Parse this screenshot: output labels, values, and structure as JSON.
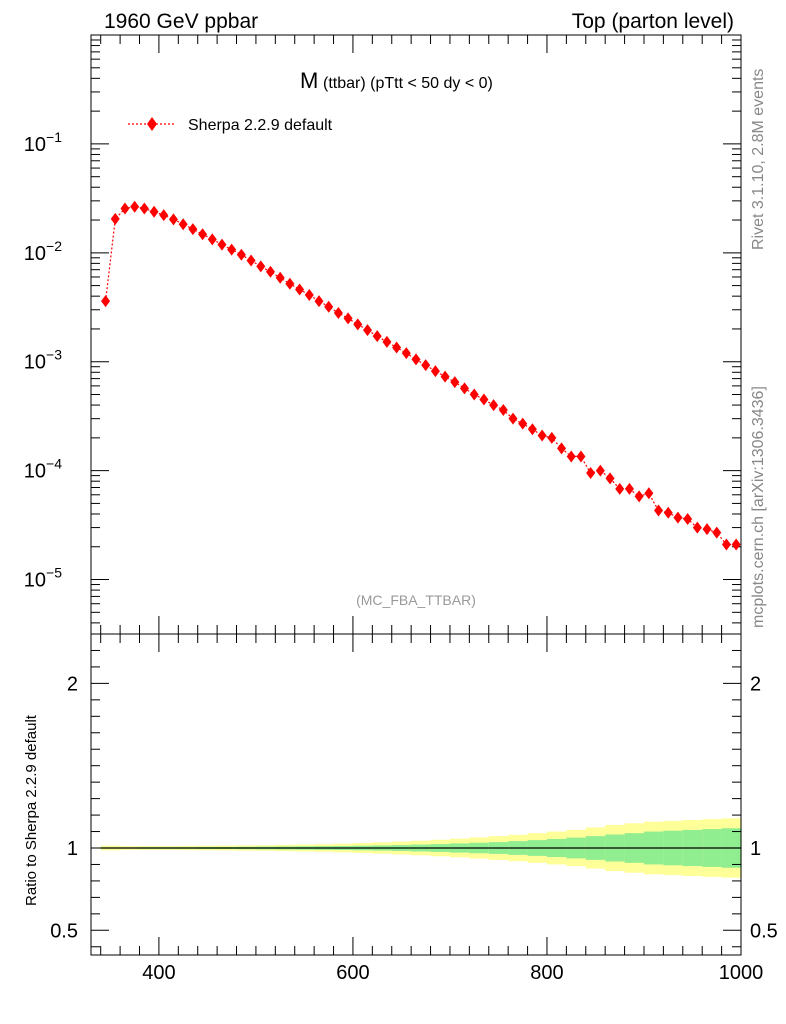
{
  "header": {
    "left": "1960 GeV ppbar",
    "right": "Top (parton level)"
  },
  "side_labels": {
    "rivet": "Rivet 3.1.10,  2.8M events",
    "mcplots": "mcplots.cern.ch [arXiv:1306.3436]"
  },
  "chart_data": {
    "type": "scatter",
    "title_main": "M",
    "title_sub": "(ttbar) (pTtt < 50 dy < 0)",
    "analysis": "(MC_FBA_TTBAR)",
    "xlim": [
      330,
      1000
    ],
    "ylim_log": [
      -5.5,
      0
    ],
    "ratio_ylim": [
      0.35,
      2.3
    ],
    "y_tick_labels": [
      {
        "base": "10",
        "exp": "−1",
        "value": 0.1
      },
      {
        "base": "10",
        "exp": "−2",
        "value": 0.01
      },
      {
        "base": "10",
        "exp": "−3",
        "value": 0.001
      },
      {
        "base": "10",
        "exp": "−4",
        "value": 0.0001
      },
      {
        "base": "10",
        "exp": "−5",
        "value": 1e-05
      }
    ],
    "x_ticks": [
      400,
      600,
      800,
      1000
    ],
    "x_tick_labels": [
      "400",
      "600",
      "800",
      "1000"
    ],
    "ratio_ticks": [
      0.5,
      1,
      2
    ],
    "ratio_tick_labels": [
      "0.5",
      "1",
      "2"
    ],
    "ratio_ylabel": "Ratio to Sherpa 2.2.9 default",
    "legend": "Sherpa 2.2.9 default",
    "series": [
      {
        "name": "Sherpa 2.2.9 default",
        "color": "#ff0000",
        "x": [
          345,
          355,
          365,
          375,
          385,
          395,
          405,
          415,
          425,
          435,
          445,
          455,
          465,
          475,
          485,
          495,
          505,
          515,
          525,
          535,
          545,
          555,
          565,
          575,
          585,
          595,
          605,
          615,
          625,
          635,
          645,
          655,
          665,
          675,
          685,
          695,
          705,
          715,
          725,
          735,
          745,
          755,
          765,
          775,
          785,
          795,
          805,
          815,
          825,
          835,
          845,
          855,
          865,
          875,
          885,
          895,
          905,
          915,
          925,
          935,
          945,
          955,
          965,
          975,
          985,
          995
        ],
        "values": [
          0.0036,
          0.0205,
          0.0255,
          0.0265,
          0.0255,
          0.0238,
          0.0222,
          0.0203,
          0.0183,
          0.0165,
          0.0148,
          0.0133,
          0.0119,
          0.0107,
          0.0096,
          0.0085,
          0.0075,
          0.0067,
          0.0059,
          0.0052,
          0.0046,
          0.0041,
          0.0036,
          0.0032,
          0.0028,
          0.0025,
          0.0022,
          0.00195,
          0.00172,
          0.00152,
          0.00135,
          0.0012,
          0.00105,
          0.00093,
          0.00082,
          0.00073,
          0.00065,
          0.00057,
          0.0005,
          0.00045,
          0.0004,
          0.00036,
          0.0003,
          0.00027,
          0.00024,
          0.00021,
          0.0002,
          0.00016,
          0.000135,
          0.000135,
          9.5e-05,
          0.0001,
          8.5e-05,
          6.8e-05,
          6.8e-05,
          5.8e-05,
          6.2e-05,
          4.3e-05,
          4.1e-05,
          3.7e-05,
          3.6e-05,
          3e-05,
          2.9e-05,
          2.7e-05,
          2.1e-05,
          2.1e-05
        ]
      }
    ],
    "ratio_band": {
      "x_edges": [
        340,
        360,
        380,
        400,
        420,
        440,
        460,
        480,
        500,
        520,
        540,
        560,
        580,
        600,
        620,
        640,
        660,
        680,
        700,
        720,
        740,
        760,
        780,
        800,
        820,
        840,
        860,
        880,
        900,
        920,
        940,
        960,
        980,
        1000
      ],
      "stat": [
        0.004,
        0.004,
        0.005,
        0.005,
        0.005,
        0.006,
        0.006,
        0.007,
        0.008,
        0.009,
        0.01,
        0.011,
        0.012,
        0.014,
        0.016,
        0.018,
        0.021,
        0.024,
        0.028,
        0.032,
        0.036,
        0.042,
        0.048,
        0.055,
        0.063,
        0.072,
        0.082,
        0.09,
        0.1,
        0.105,
        0.11,
        0.115,
        0.12
      ],
      "total": [
        0.015,
        0.012,
        0.012,
        0.012,
        0.013,
        0.014,
        0.015,
        0.016,
        0.017,
        0.019,
        0.021,
        0.023,
        0.026,
        0.03,
        0.034,
        0.039,
        0.044,
        0.05,
        0.057,
        0.064,
        0.072,
        0.08,
        0.09,
        0.1,
        0.11,
        0.125,
        0.14,
        0.15,
        0.16,
        0.165,
        0.17,
        0.175,
        0.18
      ],
      "stat_color": "#90ee90",
      "total_color": "#ffff99"
    }
  }
}
